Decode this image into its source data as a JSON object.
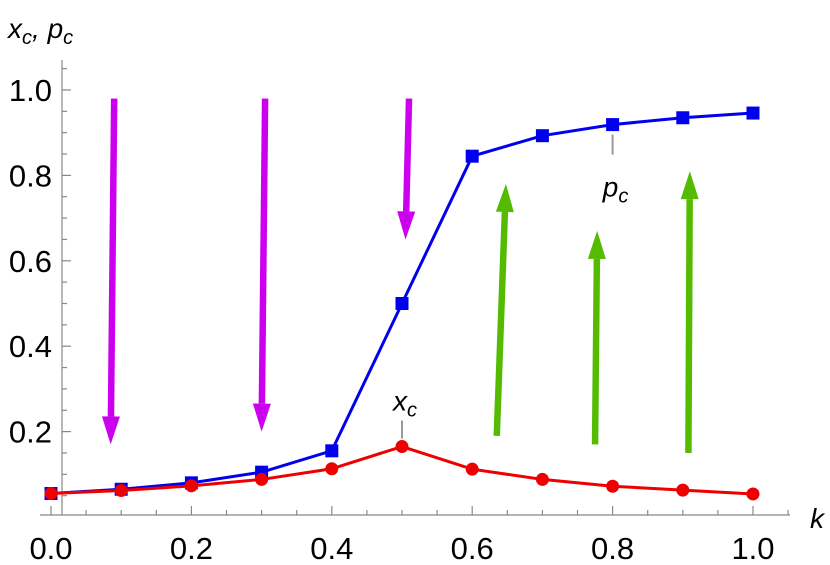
{
  "chart_data": {
    "type": "line",
    "x": [
      0.0,
      0.1,
      0.2,
      0.3,
      0.4,
      0.5,
      0.6,
      0.7,
      0.8,
      0.9,
      1.0
    ],
    "series": [
      {
        "color": "#0000ee",
        "marker": "square",
        "values": [
          0.055,
          0.065,
          0.08,
          0.105,
          0.155,
          0.5,
          0.845,
          0.893,
          0.919,
          0.935,
          0.946
        ]
      },
      {
        "color": "#ee0000",
        "marker": "circle",
        "values": [
          0.055,
          0.062,
          0.073,
          0.088,
          0.113,
          0.165,
          0.112,
          0.088,
          0.072,
          0.063,
          0.054
        ]
      }
    ],
    "xlabel": {
      "main": "k"
    },
    "ylabel": {
      "main": "x",
      "main_sub": "c",
      "sep": ", ",
      "second": "p",
      "second_sub": "c"
    },
    "xlim": [
      0.0,
      1.05
    ],
    "ylim": [
      0.0,
      1.08
    ],
    "xticks": [
      "0.0",
      "0.2",
      "0.4",
      "0.6",
      "0.8",
      "1.0"
    ],
    "yticks": [
      "0.2",
      "0.4",
      "0.6",
      "0.8",
      "1.0"
    ],
    "annotations": [
      {
        "main": "x",
        "sub": "c",
        "x": 0.5,
        "y": 0.165,
        "pointer": "up"
      },
      {
        "main": "p",
        "sub": "c",
        "x": 0.8,
        "y": 0.919,
        "pointer": "down"
      }
    ],
    "arrows": [
      {
        "color": "#cc00ee",
        "x1": 0.09,
        "y1": 0.98,
        "x2": 0.085,
        "y2": 0.17
      },
      {
        "color": "#cc00ee",
        "x1": 0.305,
        "y1": 0.98,
        "x2": 0.3,
        "y2": 0.2
      },
      {
        "color": "#cc00ee",
        "x1": 0.51,
        "y1": 0.98,
        "x2": 0.505,
        "y2": 0.65
      },
      {
        "color": "#55bb00",
        "x1": 0.635,
        "y1": 0.19,
        "x2": 0.648,
        "y2": 0.78
      },
      {
        "color": "#55bb00",
        "x1": 0.775,
        "y1": 0.17,
        "x2": 0.778,
        "y2": 0.67
      },
      {
        "color": "#55bb00",
        "x1": 0.908,
        "y1": 0.15,
        "x2": 0.91,
        "y2": 0.81
      }
    ],
    "grid": false,
    "legend": "none"
  }
}
